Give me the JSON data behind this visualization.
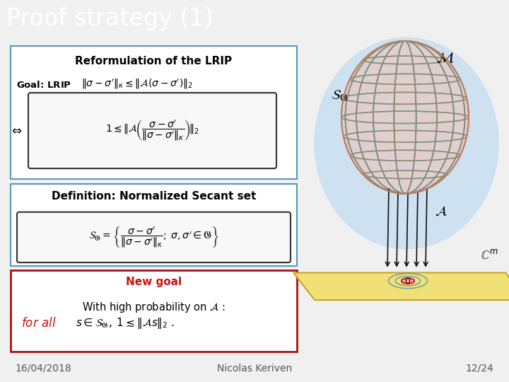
{
  "title": "Proof strategy (1)",
  "title_bg": "#111111",
  "title_color": "#ffffff",
  "title_fontsize": 24,
  "footer_bg": "#dce8f0",
  "footer_text_left": "16/04/2018",
  "footer_text_center": "Nicolas Keriven",
  "footer_text_right": "12/24",
  "footer_fontsize": 10,
  "box1_title": "Reformulation of the LRIP",
  "box1_bg": "#ffffff",
  "box1_border": "#5599bb",
  "box2_title": "Definition: Normalized Secant set",
  "box2_bg": "#ffffff",
  "box2_border": "#5599bb",
  "box3_title": "New goal",
  "box3_bg": "#ffffff",
  "box3_border": "#aa1111",
  "box3_title_color": "#cc1111",
  "inner_box_bg": "#f8f8f8",
  "inner_box_border": "#333333",
  "main_bg": "#ffffff",
  "slide_bg": "#f0f0f0"
}
